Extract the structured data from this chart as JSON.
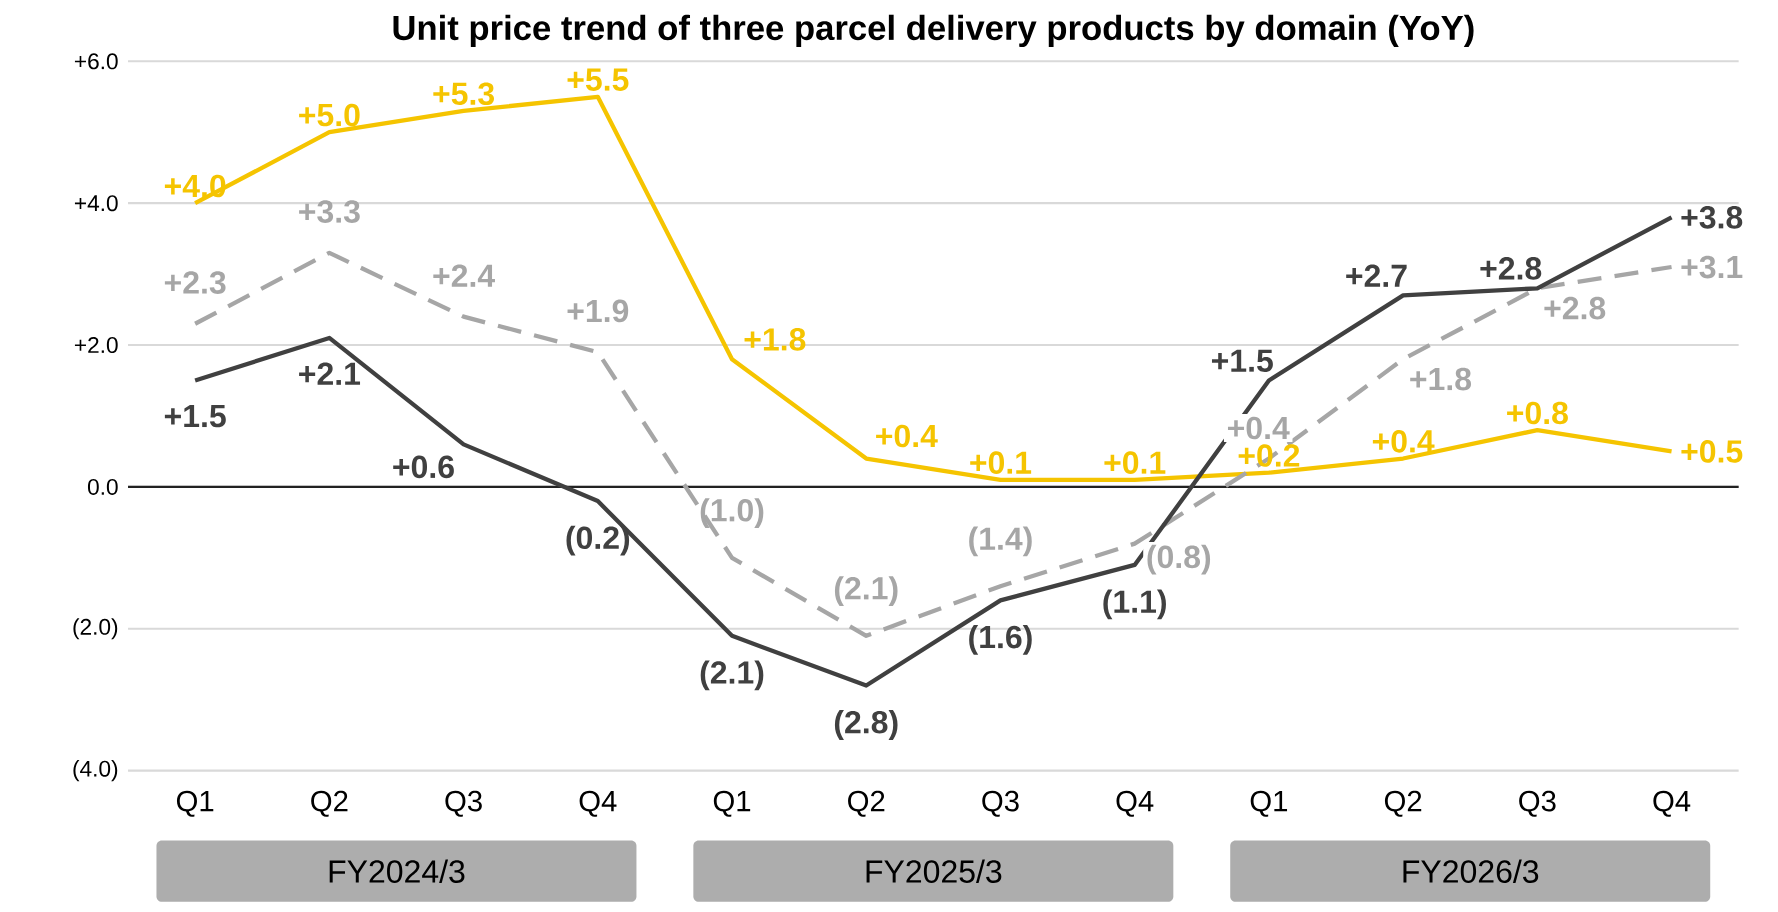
{
  "chart_data": {
    "type": "line",
    "title": "Unit price trend of three parcel delivery products by domain (YoY)",
    "categories": [
      "Q1",
      "Q2",
      "Q3",
      "Q4",
      "Q1",
      "Q2",
      "Q3",
      "Q4",
      "Q1",
      "Q2",
      "Q3",
      "Q4"
    ],
    "series": [
      {
        "color": "#f5c400",
        "line_style": "solid",
        "values": [
          4.0,
          5.0,
          5.3,
          5.5,
          1.8,
          0.4,
          0.1,
          0.1,
          0.2,
          0.4,
          0.8,
          0.5
        ],
        "value_labels": [
          "+4.0",
          "+5.0",
          "+5.3",
          "+5.5",
          "+1.8",
          "+0.4",
          "+0.1",
          "+0.1",
          "+0.2",
          "+0.4",
          "+0.8",
          "+0.5"
        ]
      },
      {
        "color": "#a6a6a6",
        "line_style": "dashed",
        "values": [
          2.3,
          3.3,
          2.4,
          1.9,
          -1.0,
          -2.1,
          -1.4,
          -0.8,
          0.4,
          1.8,
          2.8,
          3.1
        ],
        "value_labels": [
          "+2.3",
          "+3.3",
          "+2.4",
          "+1.9",
          "(1.0)",
          "(2.1)",
          "(1.4)",
          "(0.8)",
          "+0.4",
          "+1.8",
          "+2.8",
          "+3.1"
        ]
      },
      {
        "color": "#404040",
        "line_style": "solid",
        "values": [
          1.5,
          2.1,
          0.6,
          -0.2,
          -2.1,
          -2.8,
          -1.6,
          -1.1,
          1.5,
          2.7,
          2.8,
          3.8
        ],
        "value_labels": [
          "+1.5",
          "+2.1",
          "+0.6",
          "(0.2)",
          "(2.1)",
          "(2.8)",
          "(1.6)",
          "(1.1)",
          "+1.5",
          "+2.7",
          "+2.8",
          "+3.8"
        ]
      }
    ],
    "ylim": [
      -4,
      6
    ],
    "yticks": [
      {
        "value": 6,
        "label": "+6.0"
      },
      {
        "value": 4,
        "label": "+4.0"
      },
      {
        "value": 2,
        "label": "+2.0"
      },
      {
        "value": 0,
        "label": "0.0"
      },
      {
        "value": -2,
        "label": "(2.0)"
      },
      {
        "value": -4,
        "label": "(4.0)"
      }
    ],
    "grid": "y",
    "ref_lines": [
      {
        "axis": "y",
        "value": 0,
        "color": "#222222"
      }
    ],
    "annotations": [
      "FY2024/3",
      "FY2025/3",
      "FY2026/3"
    ]
  }
}
